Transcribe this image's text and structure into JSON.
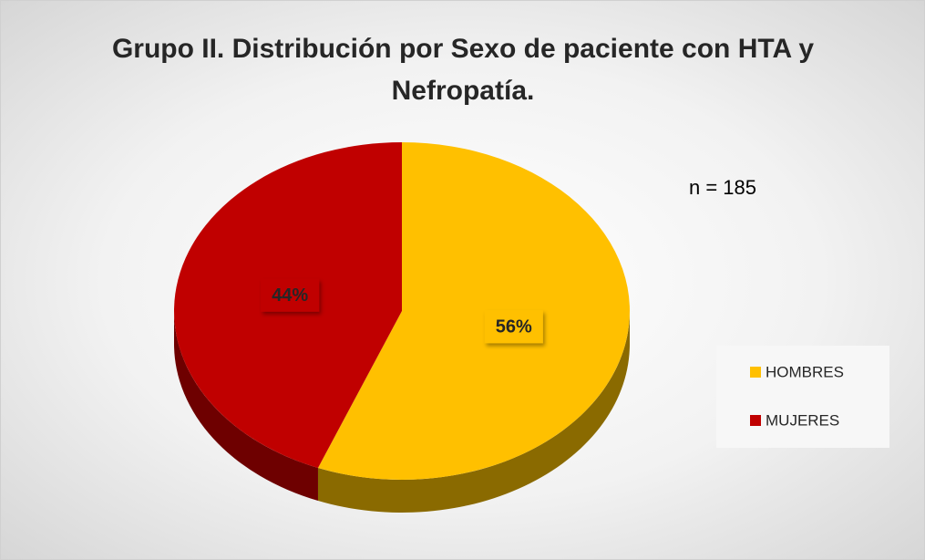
{
  "chart_data": {
    "type": "pie",
    "title": "Grupo II. Distribución por Sexo de paciente con HTA y Nefropatía.",
    "annotation": "n = 185",
    "categories": [
      "HOMBRES",
      "MUJERES"
    ],
    "values": [
      56,
      44
    ],
    "value_labels": [
      "56%",
      "44%"
    ],
    "colors": [
      "#ffc000",
      "#c00000"
    ],
    "side_colors": [
      "#8a6a00",
      "#6e0000"
    ],
    "legend": "right"
  }
}
